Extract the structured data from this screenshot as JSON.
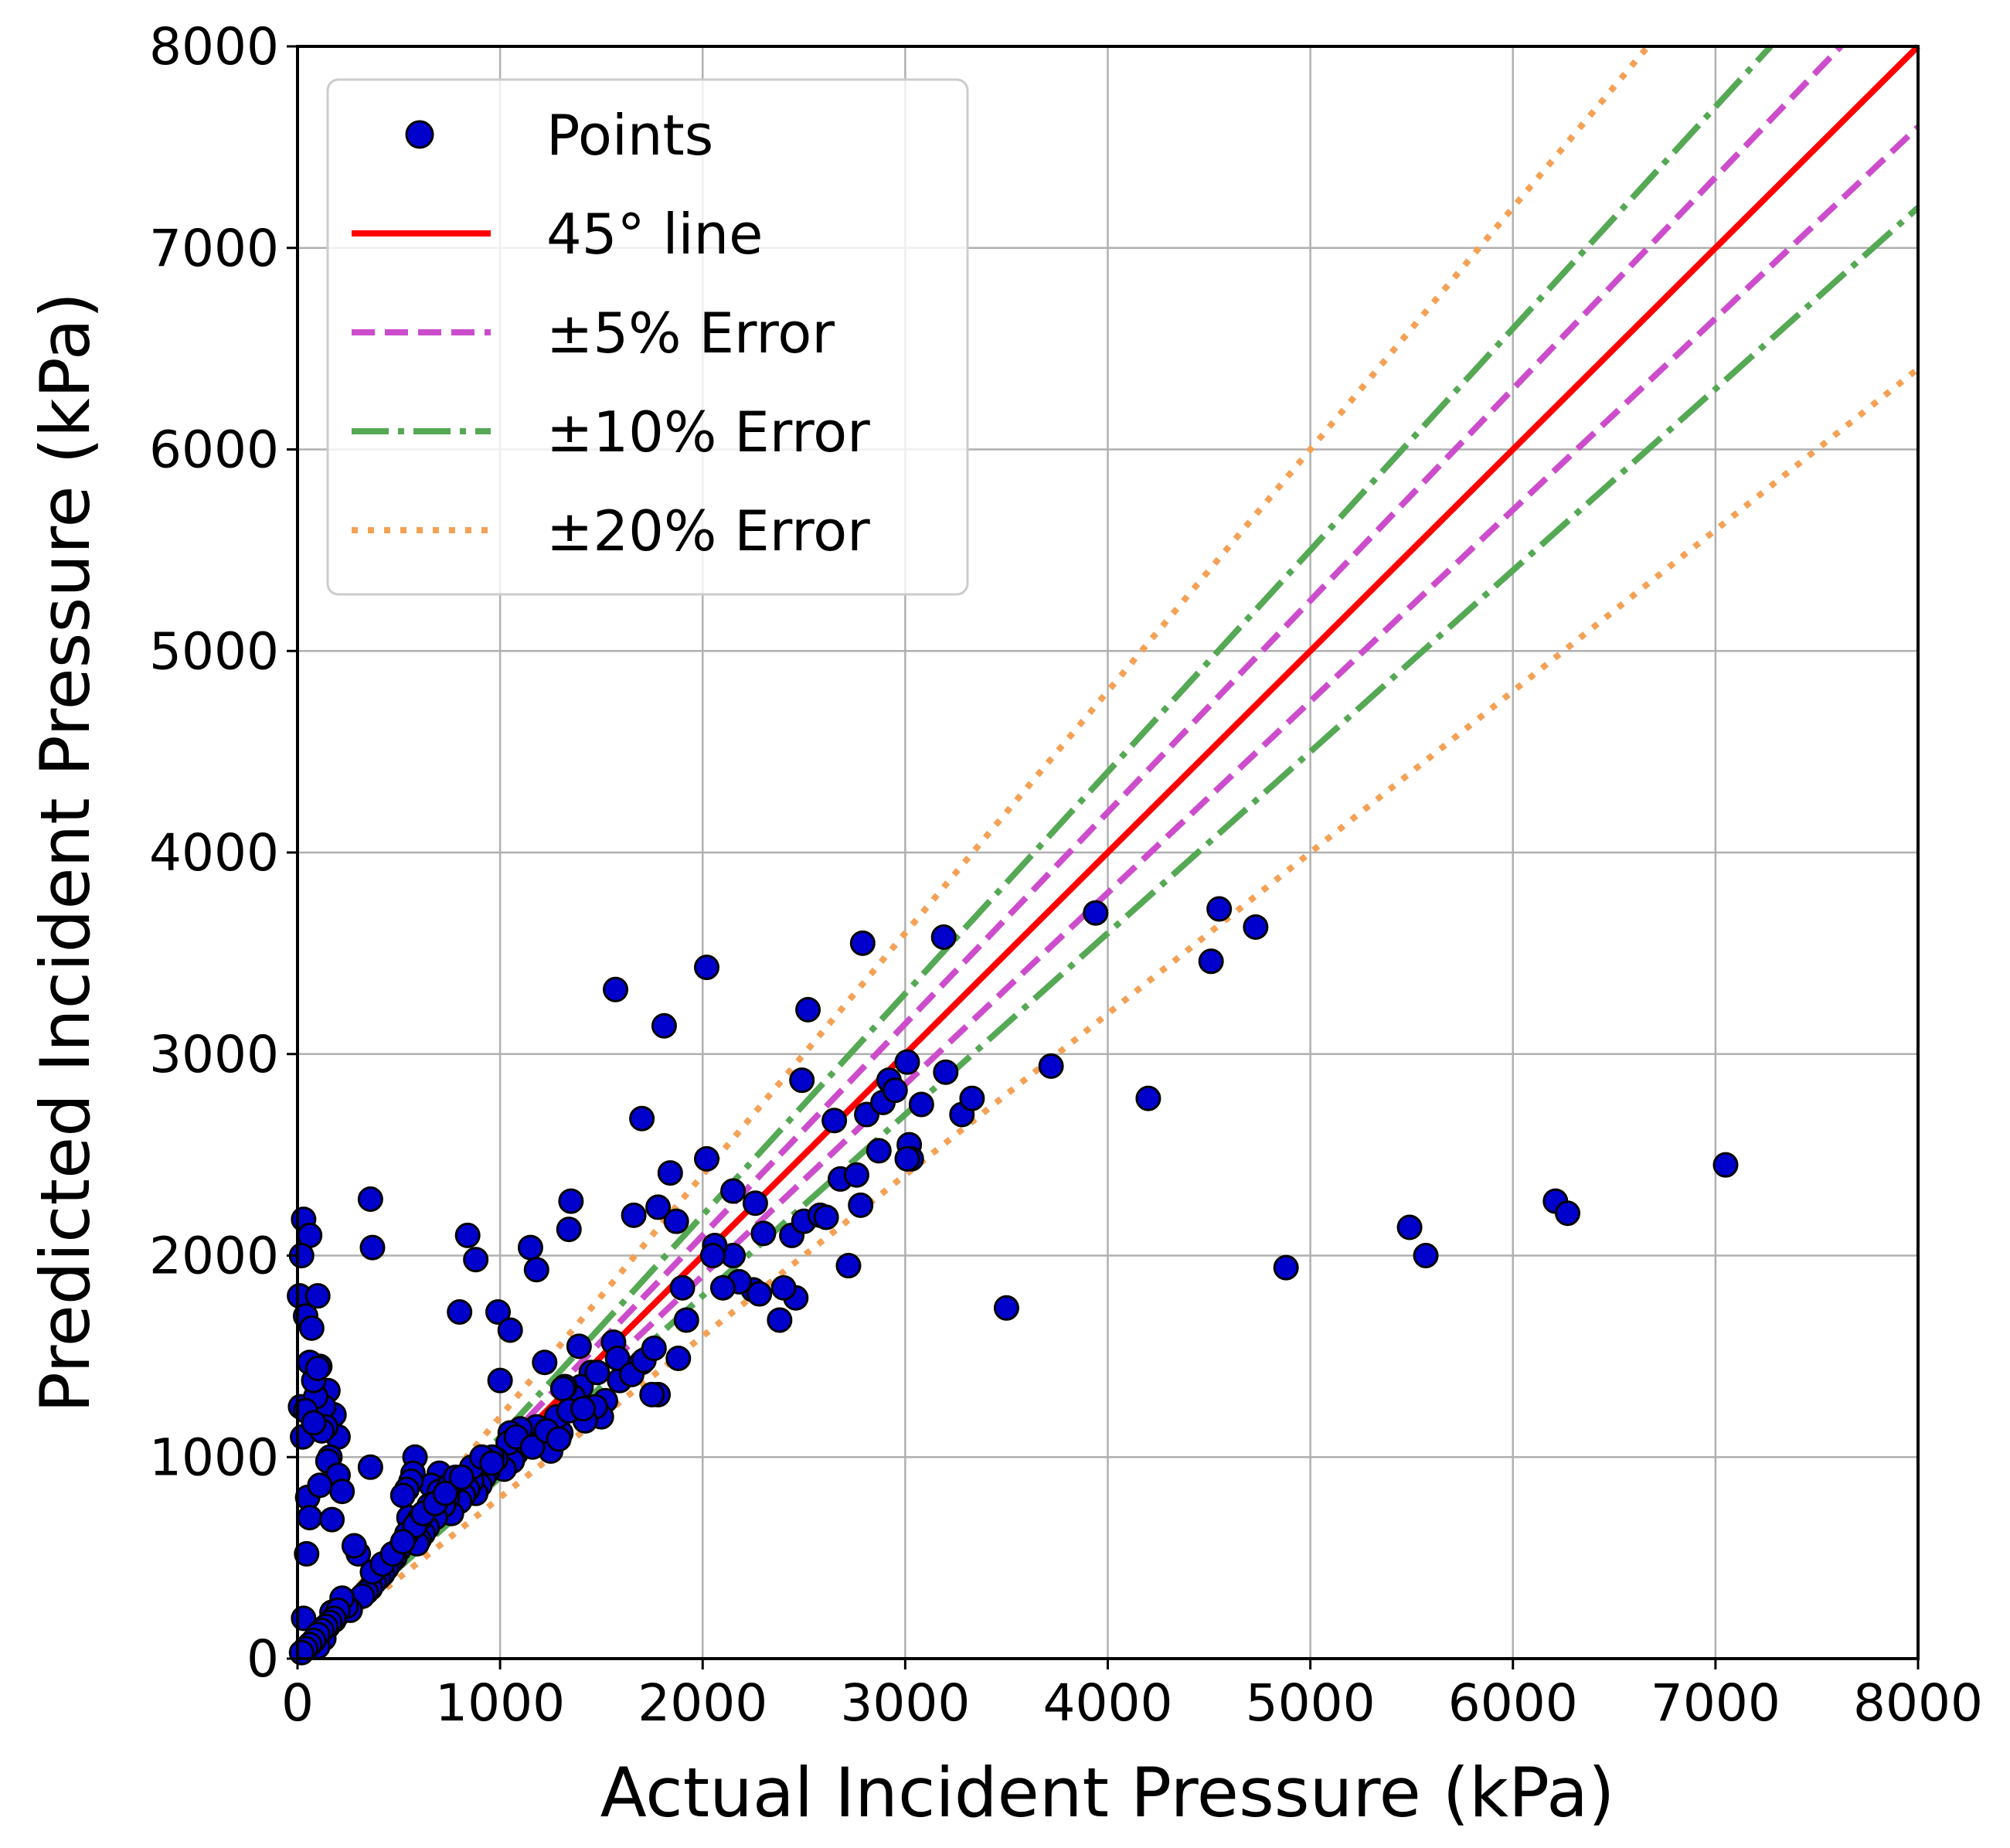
{
  "chart_data": {
    "type": "scatter",
    "xlabel": "Actual Incident Pressure (kPa)",
    "ylabel": "Predicted Incident Pressure (kPa)",
    "xlim": [
      0,
      8000
    ],
    "ylim": [
      0,
      8000
    ],
    "xticks": [
      "0",
      "1000",
      "2000",
      "3000",
      "4000",
      "5000",
      "6000",
      "7000",
      "8000"
    ],
    "yticks": [
      "0",
      "1000",
      "2000",
      "3000",
      "4000",
      "5000",
      "6000",
      "7000",
      "8000"
    ],
    "grid": true,
    "legend_position": "top-left",
    "colors": {
      "points_fill": "#0000cc",
      "points_edge": "#000000",
      "line_45": "#ff0000",
      "band_5": "#cc4dcc",
      "band_10": "#55a854",
      "band_20": "#f4a155",
      "grid": "#b0b0b0"
    },
    "series": [
      {
        "name": "Points",
        "kind": "scatter",
        "x": [
          30,
          60,
          20,
          10,
          40,
          70,
          15,
          25,
          50,
          45,
          100,
          110,
          150,
          180,
          200,
          130,
          90,
          140,
          160,
          190,
          40,
          60,
          80,
          100,
          120,
          150,
          200,
          220,
          30,
          110,
          80,
          60,
          170,
          200,
          180,
          150,
          120,
          110,
          130,
          100,
          170,
          360,
          370,
          360,
          840,
          800,
          880,
          990,
          1050,
          1150,
          1180,
          1350,
          1340,
          1570,
          1810,
          2020,
          2790,
          3190,
          2520,
          2490,
          1700,
          1660,
          1780,
          1840,
          1870,
          2020,
          2150,
          2260,
          2300,
          2440,
          2500,
          2580,
          2610,
          2650,
          2680,
          2720,
          2760,
          2780,
          2810,
          2870,
          2890,
          2920,
          2950,
          3010,
          3020,
          3080,
          3200,
          3280,
          3330,
          3030,
          3010,
          2460,
          2400,
          2380,
          2250,
          2180,
          2150,
          2100,
          2060,
          1920,
          1900,
          1880,
          1780,
          1750,
          1700,
          1630,
          1590,
          1560,
          1520,
          1500,
          1470,
          1450,
          1420,
          1400,
          1390,
          1360,
          1320,
          1300,
          1280,
          1250,
          1220,
          1180,
          1150,
          1120,
          1100,
          1080,
          1060,
          1050,
          1040,
          1020,
          1000,
          980,
          960,
          940,
          920,
          900,
          880,
          860,
          840,
          820,
          800,
          780,
          760,
          740,
          720,
          700,
          680,
          660,
          640,
          620,
          600,
          590,
          580,
          570,
          560,
          550,
          540,
          520,
          500,
          480,
          460,
          440,
          420,
          400,
          380,
          360,
          340,
          320,
          300,
          280,
          260,
          240,
          220,
          200,
          180,
          160,
          140,
          120,
          100,
          80,
          60,
          40,
          20,
          2050,
          2280,
          3720,
          3940,
          4200,
          4510,
          4550,
          4730,
          3500,
          4880,
          5490,
          5570,
          6210,
          6270,
          7050,
          1310,
          1340,
          1410,
          1480,
          1580,
          1650,
          1710,
          1760,
          1080,
          1160,
          1230,
          1290,
          600,
          650,
          700,
          750,
          780,
          860,
          910,
          960,
          540,
          580,
          620,
          680,
          730,
          810,
          370,
          420,
          470,
          520
        ],
        "y": [
          2180,
          2100,
          2000,
          1800,
          1700,
          1640,
          1250,
          1100,
          800,
          520,
          1800,
          1450,
          1330,
          1210,
          1100,
          1250,
          1300,
          1150,
          1000,
          880,
          1230,
          1470,
          1380,
          1440,
          1130,
          980,
          910,
          830,
          200,
          860,
          1170,
          700,
          690,
          220,
          190,
          160,
          140,
          120,
          100,
          60,
          230,
          2280,
          2040,
          950,
          2100,
          1720,
          1980,
          1720,
          1630,
          2040,
          1930,
          2270,
          2130,
          3320,
          3140,
          3430,
          3550,
          3580,
          3220,
          2870,
          2680,
          2200,
          2240,
          2410,
          2170,
          2480,
          2320,
          2260,
          2110,
          2100,
          2170,
          2200,
          2190,
          2670,
          2380,
          1950,
          2400,
          2250,
          2700,
          2520,
          2760,
          2870,
          2820,
          2960,
          2550,
          2750,
          2910,
          2700,
          2780,
          2480,
          2480,
          1790,
          1840,
          1680,
          1830,
          1870,
          2000,
          1840,
          2050,
          1680,
          1840,
          1490,
          1310,
          1310,
          1470,
          1440,
          1380,
          1570,
          1280,
          1200,
          1250,
          1420,
          1180,
          1350,
          1550,
          1300,
          1350,
          1120,
          1200,
          1030,
          1470,
          1150,
          1060,
          1080,
          1140,
          1020,
          980,
          1120,
          1070,
          940,
          1380,
          990,
          1000,
          930,
          900,
          860,
          820,
          880,
          840,
          810,
          780,
          880,
          720,
          800,
          760,
          920,
          700,
          860,
          650,
          620,
          590,
          570,
          1000,
          920,
          880,
          700,
          840,
          810,
          540,
          500,
          480,
          450,
          420,
          400,
          380,
          350,
          330,
          310,
          520,
          560,
          240,
          260,
          300,
          240,
          200,
          180,
          160,
          140,
          120,
          90,
          70,
          50,
          30,
          2000,
          1810,
          2940,
          3700,
          2780,
          3460,
          3720,
          3630,
          1740,
          1940,
          2140,
          2000,
          2270,
          2210,
          2450,
          1340,
          1230,
          1240,
          1420,
          1490,
          1410,
          1480,
          1540,
          1100,
          1050,
          1130,
          1090,
          690,
          760,
          830,
          860,
          900,
          950,
          1000,
          970,
          620,
          660,
          720,
          770,
          820,
          900,
          430,
          470,
          520,
          580
        ]
      },
      {
        "name": "45° line",
        "kind": "line",
        "factor": 1.0
      },
      {
        "name": "±5% Error",
        "kind": "band",
        "factors": [
          1.05,
          0.95
        ]
      },
      {
        "name": "±10% Error",
        "kind": "band",
        "factors": [
          1.1,
          0.9
        ]
      },
      {
        "name": "±20% Error",
        "kind": "band",
        "factors": [
          1.2,
          0.8
        ]
      }
    ]
  }
}
